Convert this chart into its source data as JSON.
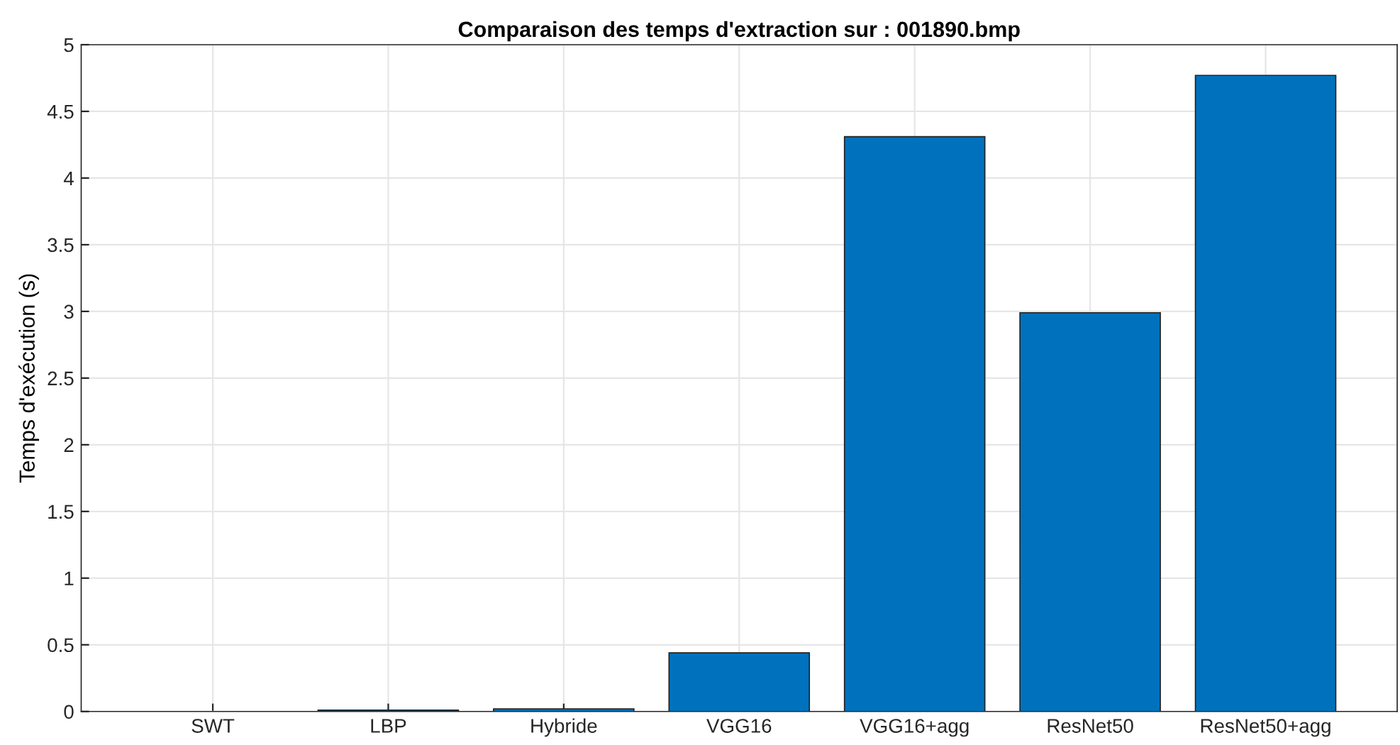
{
  "chart_data": {
    "type": "bar",
    "title": "Comparaison des temps d'extraction sur : 001890.bmp",
    "ylabel": "Temps d'exécution (s)",
    "categories": [
      "SWT",
      "LBP",
      "Hybride",
      "VGG16",
      "VGG16+agg",
      "ResNet50",
      "ResNet50+agg"
    ],
    "values": [
      null,
      0.01,
      0.02,
      0.44,
      4.31,
      2.99,
      4.77
    ],
    "color": "#0072bd",
    "ylim": [
      0,
      5
    ],
    "yticks": [
      0,
      0.5,
      1,
      1.5,
      2,
      2.5,
      3,
      3.5,
      4,
      4.5,
      5
    ],
    "grid": true
  }
}
